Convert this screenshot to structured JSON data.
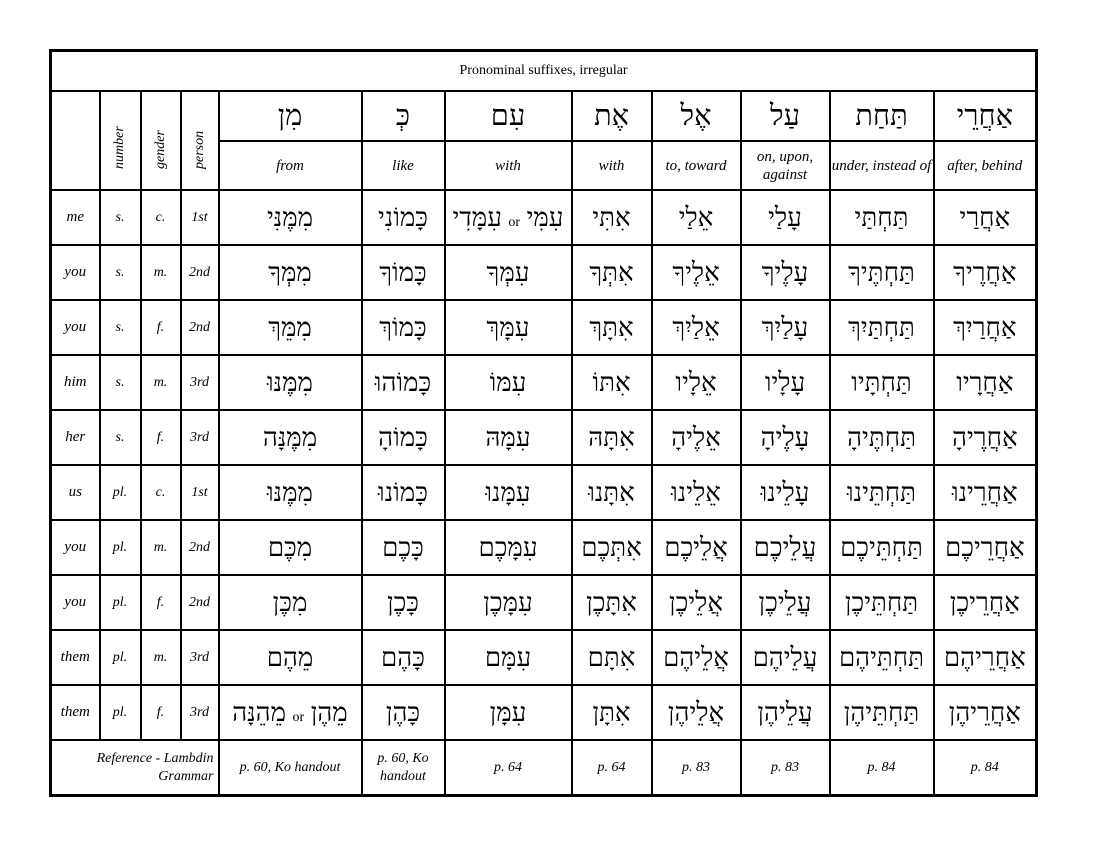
{
  "title": "Pronominal suffixes, irregular",
  "meta_headers": [
    "number",
    "gender",
    "person"
  ],
  "columns": [
    {
      "hebrew": "מִן",
      "gloss": "from",
      "ref": "p. 60, Ko handout"
    },
    {
      "hebrew": "כְּ",
      "gloss": "like",
      "ref": "p. 60, Ko handout"
    },
    {
      "hebrew": "עִם",
      "gloss": "with",
      "ref": "p. 64"
    },
    {
      "hebrew": "אֶת",
      "gloss": "with",
      "ref": "p. 64"
    },
    {
      "hebrew": "אֶל",
      "gloss": "to, toward",
      "ref": "p. 83"
    },
    {
      "hebrew": "עַל",
      "gloss": "on, upon, against",
      "ref": "p. 83"
    },
    {
      "hebrew": "תַּחַת",
      "gloss": "under, instead of",
      "ref": "p. 84"
    },
    {
      "hebrew": "אַחֲרֵי",
      "gloss": "after, behind",
      "ref": "p. 84"
    }
  ],
  "rows": [
    {
      "label": "me",
      "number": "s.",
      "gender": "c.",
      "person": "1st",
      "cells": [
        {
          "a": "מִמֶּנִּי"
        },
        {
          "a": "כָּמוֹנִי"
        },
        {
          "a": "עִמִּי",
          "or": "or",
          "b": "עִמָּדִי"
        },
        {
          "a": "אִתִּי"
        },
        {
          "a": "אֵלַי"
        },
        {
          "a": "עָלַי"
        },
        {
          "a": "תַּחְתַּי"
        },
        {
          "a": "אַחֲרַי"
        }
      ]
    },
    {
      "label": "you",
      "number": "s.",
      "gender": "m.",
      "person": "2nd",
      "cells": [
        {
          "a": "מִמְּךָ"
        },
        {
          "a": "כָּמוֹךָ"
        },
        {
          "a": "עִמְּךָ"
        },
        {
          "a": "אִתְּךָ"
        },
        {
          "a": "אֵלֶיךָ"
        },
        {
          "a": "עָלֶיךָ"
        },
        {
          "a": "תַּחְתֶּיךָ"
        },
        {
          "a": "אַחֲרֶיךָ"
        }
      ]
    },
    {
      "label": "you",
      "number": "s.",
      "gender": "f.",
      "person": "2nd",
      "cells": [
        {
          "a": "מִמֵּךְ"
        },
        {
          "a": "כָּמוֹךְ"
        },
        {
          "a": "עִמָּךְ"
        },
        {
          "a": "אִתָּךְ"
        },
        {
          "a": "אֵלַיִךְ"
        },
        {
          "a": "עָלַיִךְ"
        },
        {
          "a": "תַּחְתַּיִךְ"
        },
        {
          "a": "אַחֲרַיִךְ"
        }
      ]
    },
    {
      "label": "him",
      "number": "s.",
      "gender": "m.",
      "person": "3rd",
      "cells": [
        {
          "a": "מִמֶּנּוּ"
        },
        {
          "a": "כָּמוֹהוּ"
        },
        {
          "a": "עִמּוֹ"
        },
        {
          "a": "אִתּוֹ"
        },
        {
          "a": "אֵלָיו"
        },
        {
          "a": "עָלָיו"
        },
        {
          "a": "תַּחְתָּיו"
        },
        {
          "a": "אַחֲרָיו"
        }
      ]
    },
    {
      "label": "her",
      "number": "s.",
      "gender": "f.",
      "person": "3rd",
      "cells": [
        {
          "a": "מִמֶּנָּה"
        },
        {
          "a": "כָּמוֹהָ"
        },
        {
          "a": "עִמָּהּ"
        },
        {
          "a": "אִתָּהּ"
        },
        {
          "a": "אֵלֶיהָ"
        },
        {
          "a": "עָלֶיהָ"
        },
        {
          "a": "תַּחְתֶּיהָ"
        },
        {
          "a": "אַחֲרֶיהָ"
        }
      ]
    },
    {
      "label": "us",
      "number": "pl.",
      "gender": "c.",
      "person": "1st",
      "cells": [
        {
          "a": "מִמֶּנּוּ"
        },
        {
          "a": "כָּמוֹנוּ"
        },
        {
          "a": "עִמָּנוּ"
        },
        {
          "a": "אִתָּנוּ"
        },
        {
          "a": "אֵלֵינוּ"
        },
        {
          "a": "עָלֵינוּ"
        },
        {
          "a": "תַּחְתֵּינוּ"
        },
        {
          "a": "אַחֲרֵינוּ"
        }
      ]
    },
    {
      "label": "you",
      "number": "pl.",
      "gender": "m.",
      "person": "2nd",
      "cells": [
        {
          "a": "מִכֶּם"
        },
        {
          "a": "כָּכֶם"
        },
        {
          "a": "עִמָּכֶם"
        },
        {
          "a": "אִתְּכֶם"
        },
        {
          "a": "אֲלֵיכֶם"
        },
        {
          "a": "עֲלֵיכֶם"
        },
        {
          "a": "תַּחְתֵּיכֶם"
        },
        {
          "a": "אַחֲרֵיכֶם"
        }
      ]
    },
    {
      "label": "you",
      "number": "pl.",
      "gender": "f.",
      "person": "2nd",
      "cells": [
        {
          "a": "מִכֶּן"
        },
        {
          "a": "כָּכֶן"
        },
        {
          "a": "עִמָּכֶן"
        },
        {
          "a": "אִתָּכֶן"
        },
        {
          "a": "אֲלֵיכֶן"
        },
        {
          "a": "עֲלֵיכֶן"
        },
        {
          "a": "תַּחְתֵּיכֶן"
        },
        {
          "a": "אַחֲרֵיכֶן"
        }
      ]
    },
    {
      "label": "them",
      "number": "pl.",
      "gender": "m.",
      "person": "3rd",
      "cells": [
        {
          "a": "מֵהֶם"
        },
        {
          "a": "כָּהֶם"
        },
        {
          "a": "עִמָּם"
        },
        {
          "a": "אִתָּם"
        },
        {
          "a": "אֲלֵיהֶם"
        },
        {
          "a": "עֲלֵיהֶם"
        },
        {
          "a": "תַּחְתֵּיהֶם"
        },
        {
          "a": "אַחֲרֵיהֶם"
        }
      ]
    },
    {
      "label": "them",
      "number": "pl.",
      "gender": "f.",
      "person": "3rd",
      "cells": [
        {
          "a": "מֵהֶן",
          "or": "or",
          "b": "מֵהֵנָּה"
        },
        {
          "a": "כָּהֶן"
        },
        {
          "a": "עִמָּן"
        },
        {
          "a": "אִתָּן"
        },
        {
          "a": "אֲלֵיהֶן"
        },
        {
          "a": "עֲלֵיהֶן"
        },
        {
          "a": "תַּחְתֵּיהֶן"
        },
        {
          "a": "אַחֲרֵיהֶן"
        }
      ]
    }
  ],
  "reference_label": "Reference - Lambdin Grammar"
}
